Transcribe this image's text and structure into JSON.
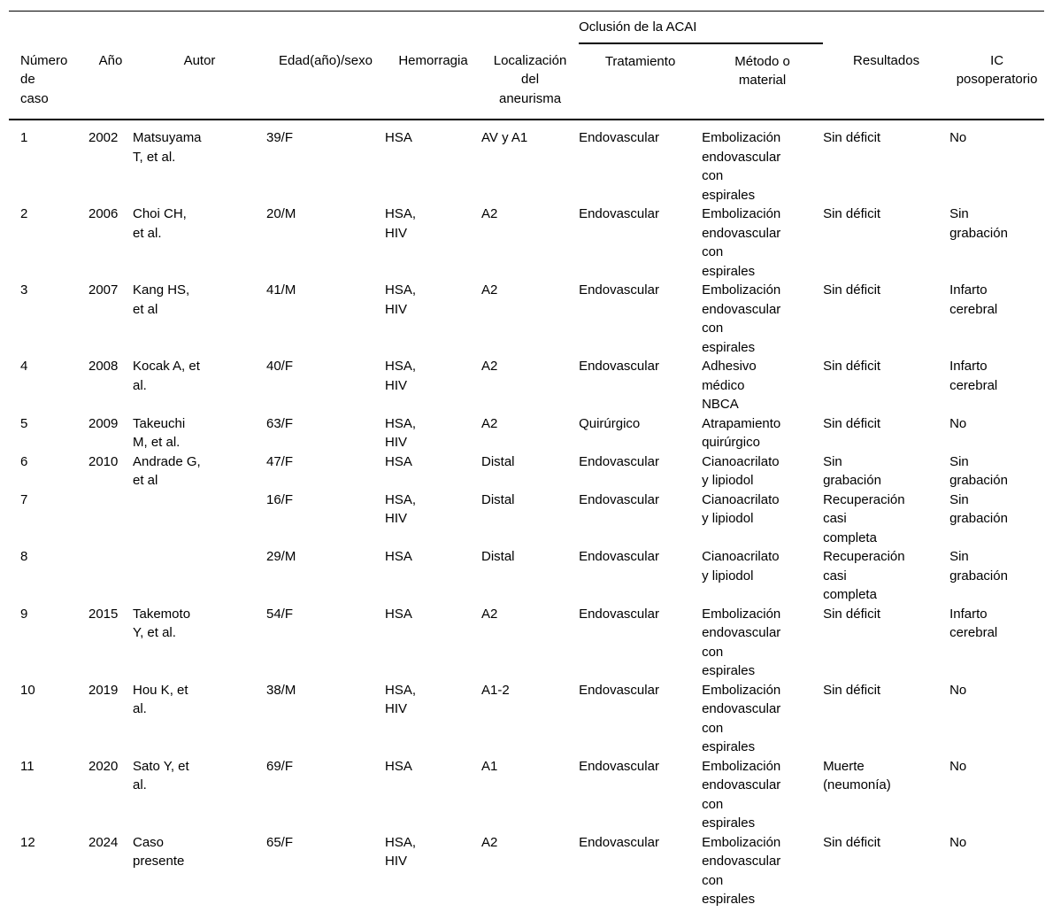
{
  "table": {
    "group_header": "Oclusión de la ACAI",
    "headers": [
      "Número\nde\ncaso",
      "Año",
      "Autor",
      "Edad(año)/sexo",
      "Hemorragia",
      "Localización\ndel\naneurisma",
      "Tratamiento",
      "Método o\nmaterial",
      "Resultados",
      "IC\nposoperatorio"
    ],
    "rows": [
      [
        "1",
        "2002",
        "Matsuyama\nT, et al.",
        "39/F",
        "HSA",
        "AV y A1",
        "Endovascular",
        "Embolización\nendovascular\ncon\nespirales",
        "Sin déficit",
        "No"
      ],
      [
        "2",
        "2006",
        "Choi CH,\net al.",
        "20/M",
        "HSA,\nHIV",
        "A2",
        "Endovascular",
        "Embolización\nendovascular\ncon\nespirales",
        "Sin déficit",
        "Sin\ngrabación"
      ],
      [
        "3",
        "2007",
        "Kang HS,\net al",
        "41/M",
        "HSA,\nHIV",
        "A2",
        "Endovascular",
        "Embolización\nendovascular\ncon\nespirales",
        "Sin déficit",
        "Infarto\ncerebral"
      ],
      [
        "4",
        "2008",
        "Kocak A, et\nal.",
        "40/F",
        "HSA,\nHIV",
        "A2",
        "Endovascular",
        "Adhesivo\nmédico\nNBCA",
        "Sin déficit",
        "Infarto\ncerebral"
      ],
      [
        "5",
        "2009",
        "Takeuchi\nM, et al.",
        "63/F",
        "HSA,\nHIV",
        "A2",
        "Quirúrgico",
        "Atrapamiento\nquirúrgico",
        "Sin déficit",
        "No"
      ],
      [
        "6",
        "2010",
        "Andrade G,\net al",
        "47/F",
        "HSA",
        "Distal",
        "Endovascular",
        "Cianoacrilato\ny lipiodol",
        "Sin\ngrabación",
        "Sin\ngrabación"
      ],
      [
        "7",
        "",
        "",
        "16/F",
        "HSA,\nHIV",
        "Distal",
        "Endovascular",
        "Cianoacrilato\ny lipiodol",
        "Recuperación\ncasi\ncompleta",
        "Sin\ngrabación"
      ],
      [
        "8",
        "",
        "",
        "29/M",
        "HSA",
        "Distal",
        "Endovascular",
        "Cianoacrilato\ny lipiodol",
        "Recuperación\ncasi\ncompleta",
        "Sin\ngrabación"
      ],
      [
        "9",
        "2015",
        "Takemoto\nY, et al.",
        "54/F",
        "HSA",
        "A2",
        "Endovascular",
        "Embolización\nendovascular\ncon\nespirales",
        "Sin déficit",
        "Infarto\ncerebral"
      ],
      [
        "10",
        "2019",
        "Hou K, et\nal.",
        "38/M",
        "HSA,\nHIV",
        "A1-2",
        "Endovascular",
        "Embolización\nendovascular\ncon\nespirales",
        "Sin déficit",
        "No"
      ],
      [
        "11",
        "2020",
        "Sato Y, et\nal.",
        "69/F",
        "HSA",
        "A1",
        "Endovascular",
        "Embolización\nendovascular\ncon\nespirales",
        "Muerte\n(neumonía)",
        "No"
      ],
      [
        "12",
        "2024",
        "Caso\npresente",
        "65/F",
        "HSA,\nHIV",
        "A2",
        "Endovascular",
        "Embolización\nendovascular\ncon\nespirales",
        "Sin déficit",
        "No"
      ]
    ]
  }
}
